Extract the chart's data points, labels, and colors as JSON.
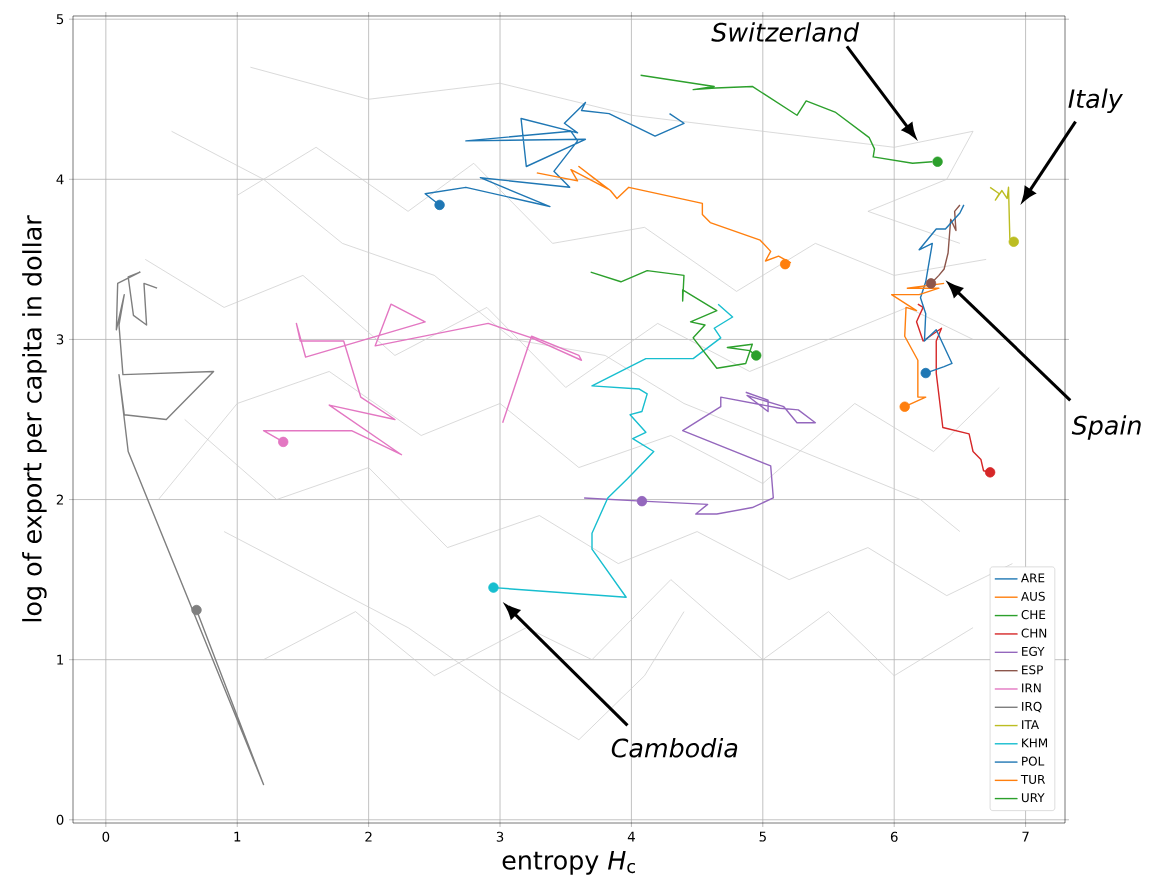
{
  "chart_data": {
    "type": "line",
    "xlabel": "entropy *H*$_{c}$",
    "ylabel": "log of export per capita in dollar",
    "xlim": [
      -0.25,
      7.3
    ],
    "ylim": [
      -0.02,
      5.02
    ],
    "xticks": [
      0,
      1,
      2,
      3,
      4,
      5,
      6,
      7
    ],
    "yticks": [
      0,
      1,
      2,
      3,
      4,
      5
    ],
    "grid": true,
    "legend": "bottom right",
    "annotations": [
      "Switzerland",
      "Italy",
      "Spain",
      "Cambodia"
    ],
    "series": [
      {
        "color": "#cccccc",
        "x": [
          0.5,
          1.2,
          1.8,
          2.5,
          3.1,
          3.8,
          4.4,
          5.0,
          5.6,
          6.2,
          6.5
        ],
        "values": [
          4.3,
          4.0,
          3.6,
          3.4,
          3.0,
          2.9,
          2.6,
          2.4,
          2.2,
          2.0,
          1.8
        ]
      },
      {
        "color": "#cccccc",
        "x": [
          0.3,
          0.9,
          1.5,
          2.2,
          2.9,
          3.5,
          4.2,
          4.9,
          5.5,
          6.1,
          6.6
        ],
        "values": [
          3.5,
          3.2,
          3.4,
          2.9,
          3.2,
          2.7,
          3.1,
          2.8,
          3.0,
          3.2,
          3.0
        ]
      },
      {
        "color": "#cccccc",
        "x": [
          0.6,
          1.3,
          2.0,
          2.6,
          3.3,
          3.9,
          4.5,
          5.2,
          5.8,
          6.4,
          6.9
        ],
        "values": [
          2.5,
          2.0,
          2.2,
          1.7,
          1.9,
          1.6,
          1.8,
          1.5,
          1.7,
          1.4,
          1.6
        ]
      },
      {
        "color": "#cccccc",
        "x": [
          1.1,
          2.0,
          3.0,
          4.0,
          5.0,
          6.0,
          6.6,
          6.4,
          5.8,
          6.5
        ],
        "values": [
          4.7,
          4.5,
          4.6,
          4.4,
          4.3,
          4.2,
          4.3,
          4.0,
          3.8,
          3.6
        ]
      },
      {
        "color": "#cccccc",
        "x": [
          0.9,
          1.6,
          2.3,
          3.0,
          3.6,
          4.1,
          4.4
        ],
        "values": [
          1.8,
          1.5,
          1.2,
          0.8,
          0.5,
          0.9,
          1.3
        ]
      },
      {
        "color": "#cccccc",
        "x": [
          1.0,
          1.6,
          2.3,
          2.8,
          3.4,
          4.1,
          4.8,
          5.4,
          6.0,
          6.7
        ],
        "values": [
          3.9,
          4.2,
          3.8,
          4.1,
          3.6,
          3.7,
          3.3,
          3.6,
          3.4,
          3.5
        ]
      },
      {
        "color": "#cccccc",
        "x": [
          0.4,
          1.0,
          1.7,
          2.4,
          3.0,
          3.6,
          4.3,
          5.0,
          5.7,
          6.3,
          6.8
        ],
        "values": [
          2.0,
          2.6,
          2.8,
          2.4,
          2.6,
          2.2,
          2.4,
          2.1,
          2.6,
          2.3,
          2.7
        ]
      },
      {
        "color": "#cccccc",
        "x": [
          1.2,
          1.9,
          2.5,
          3.2,
          3.7,
          4.3,
          5.0,
          5.5,
          6.0,
          6.6
        ],
        "values": [
          1.0,
          1.3,
          0.9,
          1.2,
          1.0,
          1.5,
          1.0,
          1.3,
          0.9,
          1.2
        ]
      },
      {
        "name": "ARE",
        "color": "#1f77b4",
        "x": [
          4.29,
          4.4,
          4.18,
          3.83,
          3.62,
          3.65,
          3.49,
          3.59,
          3.16,
          3.2,
          3.65,
          2.74,
          3.54,
          3.59,
          3.41,
          3.53,
          2.85,
          3.38,
          2.74,
          2.43,
          2.54
        ],
        "values": [
          4.41,
          4.35,
          4.27,
          4.41,
          4.43,
          4.48,
          4.35,
          4.29,
          4.38,
          4.08,
          4.25,
          4.24,
          4.3,
          4.24,
          4.05,
          3.95,
          4.01,
          3.83,
          3.95,
          3.91,
          3.84
        ]
      },
      {
        "name": "AUS",
        "color": "#ff7f0e",
        "x": [
          3.28,
          3.59,
          3.54,
          3.82,
          3.6,
          3.84,
          3.89,
          3.98,
          4.54,
          4.54,
          4.6,
          4.98,
          5.06,
          5.02,
          5.12,
          5.21,
          5.17
        ],
        "values": [
          4.04,
          3.99,
          4.06,
          3.94,
          4.08,
          3.93,
          3.88,
          3.95,
          3.85,
          3.78,
          3.73,
          3.62,
          3.55,
          3.49,
          3.52,
          3.48,
          3.47
        ]
      },
      {
        "name": "CHE",
        "color": "#2ca02c",
        "x": [
          4.07,
          4.63,
          4.47,
          4.64,
          4.92,
          5.26,
          5.33,
          5.55,
          5.81,
          5.85,
          5.84,
          6.14,
          6.29
        ],
        "values": [
          4.65,
          4.58,
          4.56,
          4.57,
          4.58,
          4.4,
          4.49,
          4.42,
          4.26,
          4.19,
          4.14,
          4.1,
          4.11
        ]
      },
      {
        "name": "CHN",
        "color": "#d62728",
        "x": [
          6.18,
          6.22,
          6.17,
          6.22,
          6.36,
          6.32,
          6.32,
          6.37,
          6.57,
          6.6,
          6.66,
          6.68,
          6.73
        ],
        "values": [
          3.22,
          3.2,
          3.11,
          2.99,
          3.07,
          2.99,
          2.79,
          2.45,
          2.41,
          2.3,
          2.25,
          2.18,
          2.17
        ]
      },
      {
        "name": "EGY",
        "color": "#9467bd",
        "x": [
          3.64,
          4.08,
          4.58,
          4.49,
          4.65,
          4.92,
          5.08,
          5.06,
          4.39,
          4.68,
          4.68,
          5.13,
          5.27,
          5.4,
          5.26,
          5.16,
          4.88,
          5.04,
          5.04,
          4.87
        ],
        "values": [
          2.01,
          1.99,
          1.97,
          1.91,
          1.91,
          1.95,
          2.01,
          2.21,
          2.43,
          2.58,
          2.64,
          2.57,
          2.56,
          2.48,
          2.48,
          2.58,
          2.65,
          2.55,
          2.62,
          2.67
        ]
      },
      {
        "name": "ESP",
        "color": "#8c564b",
        "x": [
          6.5,
          6.46,
          6.47,
          6.43,
          6.41,
          6.38,
          6.34,
          6.28
        ],
        "values": [
          3.84,
          3.8,
          3.68,
          3.75,
          3.54,
          3.44,
          3.4,
          3.35
        ]
      },
      {
        "name": "IRN",
        "color": "#e377c2",
        "x": [
          3.02,
          3.24,
          3.6,
          3.62,
          3.24,
          2.91,
          2.05,
          2.17,
          2.43,
          1.52,
          1.45,
          1.48,
          1.81,
          1.94,
          2.2,
          1.7,
          2.25,
          1.87,
          1.2,
          1.35
        ],
        "values": [
          2.48,
          3.02,
          2.9,
          2.87,
          3.01,
          3.1,
          2.96,
          3.22,
          3.11,
          2.89,
          3.1,
          2.99,
          2.99,
          2.64,
          2.5,
          2.59,
          2.28,
          2.43,
          2.43,
          2.36
        ]
      },
      {
        "name": "IRQ",
        "color": "#7f7f7f",
        "x": [
          0.39,
          0.29,
          0.31,
          0.21,
          0.17,
          0.26,
          0.09,
          0.08,
          0.14,
          0.1,
          0.13,
          0.82,
          0.46,
          0.14,
          0.1,
          0.17,
          1.2,
          0.69
        ],
        "values": [
          3.32,
          3.35,
          3.09,
          3.15,
          3.39,
          3.42,
          3.35,
          3.06,
          3.28,
          3.09,
          2.78,
          2.8,
          2.5,
          2.53,
          2.78,
          2.3,
          0.22,
          1.31
        ]
      },
      {
        "name": "ITA",
        "color": "#bcbd22",
        "x": [
          6.73,
          6.8,
          6.77,
          6.82,
          6.86,
          6.87,
          6.88,
          6.91
        ],
        "values": [
          3.95,
          3.91,
          3.87,
          3.93,
          3.88,
          3.95,
          3.63,
          3.61
        ]
      },
      {
        "name": "KHM",
        "color": "#17becf",
        "x": [
          4.66,
          4.77,
          4.63,
          4.68,
          4.47,
          4.11,
          3.7,
          4.06,
          4.12,
          4.08,
          3.99,
          4.11,
          4.01,
          4.17,
          3.97,
          3.82,
          3.7,
          3.7,
          3.96,
          2.95
        ],
        "values": [
          3.22,
          3.14,
          3.07,
          3.01,
          2.88,
          2.88,
          2.71,
          2.69,
          2.66,
          2.55,
          2.53,
          2.42,
          2.38,
          2.3,
          2.13,
          2.01,
          1.79,
          1.69,
          1.39,
          1.45
        ]
      },
      {
        "name": "POL",
        "color": "#1f77b4",
        "x": [
          6.53,
          6.5,
          6.39,
          6.32,
          6.19,
          6.29,
          6.24,
          6.2,
          6.24,
          6.23,
          6.32,
          6.44,
          6.38,
          6.24
        ],
        "values": [
          3.84,
          3.79,
          3.69,
          3.69,
          3.56,
          3.6,
          3.36,
          3.26,
          3.16,
          2.99,
          3.06,
          2.85,
          2.83,
          2.79
        ]
      },
      {
        "name": "TUR",
        "color": "#ff7f0e",
        "x": [
          6.38,
          6.1,
          6.34,
          6.19,
          5.98,
          6.17,
          6.09,
          6.08,
          6.18,
          6.18,
          6.24,
          6.08
        ],
        "values": [
          3.35,
          3.32,
          3.32,
          3.28,
          3.28,
          3.18,
          3.2,
          3.02,
          2.87,
          2.64,
          2.64,
          2.58
        ]
      },
      {
        "name": "URY",
        "color": "#2ca02c",
        "x": [
          3.69,
          3.92,
          4.12,
          4.4,
          4.39,
          4.39,
          4.65,
          4.45,
          4.56,
          4.47,
          4.65,
          4.87,
          4.92,
          4.73,
          4.9,
          4.95
        ],
        "values": [
          3.42,
          3.36,
          3.43,
          3.4,
          3.24,
          3.31,
          3.18,
          3.11,
          3.09,
          3.01,
          2.82,
          2.85,
          2.97,
          2.95,
          2.93,
          2.9
        ]
      },
      {
        "type": "scatter",
        "marker": "circle",
        "color": "#1f77b4",
        "x": [
          2.54
        ],
        "values": [
          3.84
        ]
      },
      {
        "type": "scatter",
        "marker": "circle",
        "color": "#ff7f0e",
        "x": [
          5.17
        ],
        "values": [
          3.47
        ]
      },
      {
        "type": "scatter",
        "marker": "circle",
        "color": "#2ca02c",
        "x": [
          6.33
        ],
        "values": [
          4.11
        ]
      },
      {
        "type": "scatter",
        "marker": "circle",
        "color": "#d62728",
        "x": [
          6.73
        ],
        "values": [
          2.17
        ]
      },
      {
        "type": "scatter",
        "marker": "circle",
        "color": "#9467bd",
        "x": [
          4.08
        ],
        "values": [
          1.99
        ]
      },
      {
        "type": "scatter",
        "marker": "circle",
        "color": "#8c564b",
        "x": [
          6.28
        ],
        "values": [
          3.35
        ]
      },
      {
        "type": "scatter",
        "marker": "circle",
        "color": "#e377c2",
        "x": [
          1.35
        ],
        "values": [
          2.36
        ]
      },
      {
        "type": "scatter",
        "marker": "circle",
        "color": "#7f7f7f",
        "x": [
          0.69
        ],
        "values": [
          1.31
        ]
      },
      {
        "type": "scatter",
        "marker": "circle",
        "color": "#bcbd22",
        "x": [
          6.91
        ],
        "values": [
          3.61
        ]
      },
      {
        "type": "scatter",
        "marker": "circle",
        "color": "#17becf",
        "x": [
          2.95
        ],
        "values": [
          1.45
        ]
      },
      {
        "type": "scatter",
        "marker": "circle",
        "color": "#1f77b4",
        "x": [
          6.24
        ],
        "values": [
          2.79
        ]
      },
      {
        "type": "scatter",
        "marker": "circle",
        "color": "#ff7f0e",
        "x": [
          6.08
        ],
        "values": [
          2.58
        ]
      },
      {
        "type": "scatter",
        "marker": "circle",
        "color": "#2ca02c",
        "x": [
          4.95
        ],
        "values": [
          2.9
        ]
      }
    ]
  }
}
